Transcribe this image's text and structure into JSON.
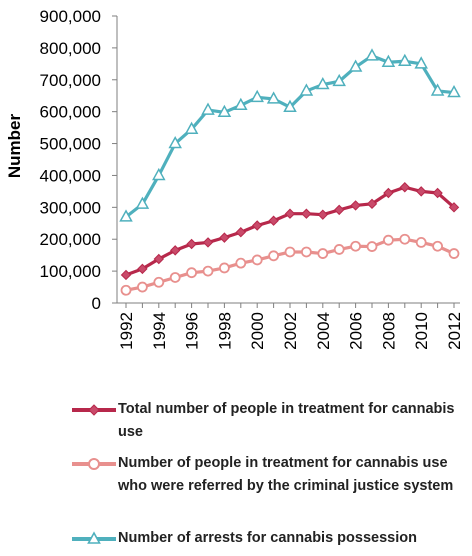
{
  "chart_data": {
    "type": "line",
    "title": "",
    "xlabel": "",
    "ylabel": "Number",
    "ylim": [
      0,
      900000
    ],
    "yticks": [
      0,
      100000,
      200000,
      300000,
      400000,
      500000,
      600000,
      700000,
      800000,
      900000
    ],
    "ytick_labels": [
      "0",
      "100,000",
      "200,000",
      "300,000",
      "400,000",
      "500,000",
      "600,000",
      "700,000",
      "800,000",
      "900,000"
    ],
    "xlim": [
      1992,
      2012
    ],
    "xticks": [
      1992,
      1994,
      1996,
      1998,
      2000,
      2002,
      2004,
      2006,
      2008,
      2010,
      2012
    ],
    "xtick_labels": [
      "1992",
      "1994",
      "1996",
      "1998",
      "2000",
      "2002",
      "2004",
      "2006",
      "2008",
      "2010",
      "2012"
    ],
    "x": [
      1992,
      1993,
      1994,
      1995,
      1996,
      1997,
      1998,
      1999,
      2000,
      2001,
      2002,
      2003,
      2004,
      2005,
      2006,
      2007,
      2008,
      2009,
      2010,
      2011,
      2012
    ],
    "legend_position": "bottom",
    "grid": false,
    "series": [
      {
        "name": "Total number of people in treatment for cannabis use",
        "color": "#b7284b",
        "marker": "diamond",
        "values": [
          88000,
          107000,
          138000,
          165000,
          185000,
          190000,
          205000,
          222000,
          243000,
          258000,
          280000,
          280000,
          277000,
          292000,
          306000,
          311000,
          345000,
          363000,
          350000,
          345000,
          300000
        ]
      },
      {
        "name": "Number of people in treatment for cannabis use who were referred by the criminal justice system",
        "color": "#e8908e",
        "marker": "circle",
        "values": [
          40000,
          50000,
          65000,
          80000,
          95000,
          100000,
          110000,
          125000,
          135000,
          148000,
          160000,
          160000,
          155000,
          168000,
          178000,
          177000,
          197000,
          200000,
          190000,
          178000,
          155000
        ]
      },
      {
        "name": "Number of arrests for cannabis possession",
        "color": "#4fb0bd",
        "marker": "triangle",
        "values": [
          270000,
          310000,
          400000,
          500000,
          545000,
          605000,
          598000,
          620000,
          645000,
          640000,
          614000,
          665000,
          685000,
          695000,
          740000,
          775000,
          755000,
          758000,
          750000,
          665000,
          660000
        ]
      }
    ]
  }
}
